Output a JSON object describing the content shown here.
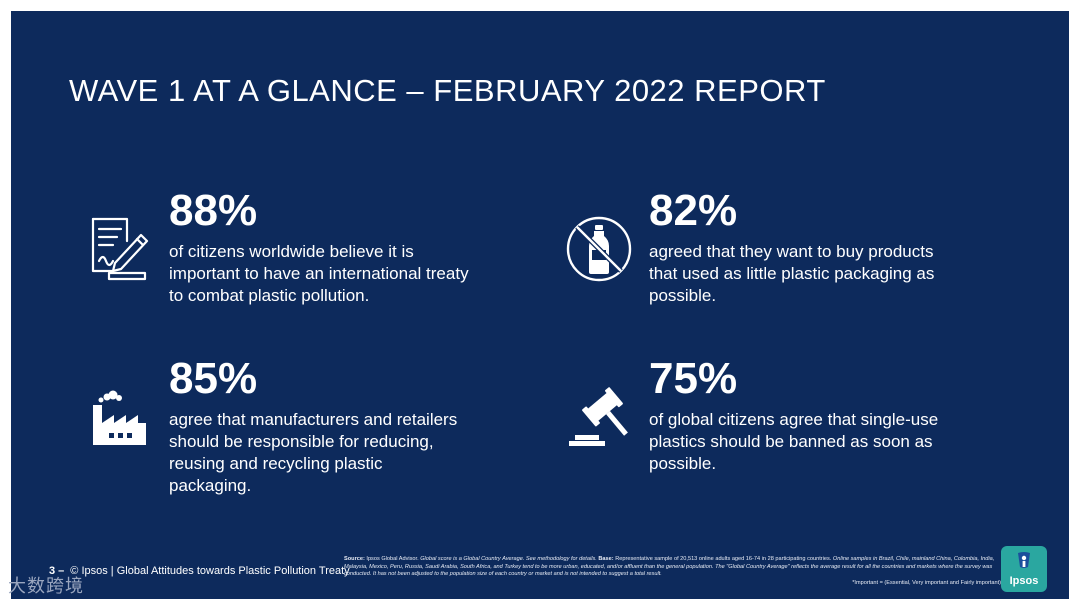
{
  "title": "WAVE 1 AT A GLANCE – FEBRUARY 2022 REPORT",
  "stats": [
    {
      "pct": "88%",
      "desc": "of citizens worldwide believe it is important to have an international treaty to combat plastic pollution.",
      "icon": "treaty-document-icon"
    },
    {
      "pct": "82%",
      "desc": "agreed that they want to buy products that used as little plastic packaging as possible.",
      "icon": "no-plastic-bottle-icon"
    },
    {
      "pct": "85%",
      "desc": "agree that manufacturers and retailers should be responsible for reducing, reusing and recycling plastic packaging.",
      "icon": "factory-icon"
    },
    {
      "pct": "75%",
      "desc": "of global citizens agree that single-use plastics should be banned as soon as possible.",
      "icon": "gavel-icon"
    }
  ],
  "footer": {
    "page": "3 –",
    "text": "© Ipsos | Global Attitudes towards Plastic Pollution Treaty"
  },
  "source": {
    "label1": "Source:",
    "text1": "Ipsos Global Advisor.",
    "italic1": "Global score is a Global Country Average. See methodology for details.",
    "label2": "Base:",
    "text2": "Representative sample of 20,513 online adults aged 16-74 in 28 participating countries.",
    "italic2": "Online samples in Brazil, Chile, mainland China, Colombia, India, Malaysia, Mexico, Peru, Russia, Saudi Arabia, South Africa, and Turkey tend to be more urban, educated, and/or affluent than the general population. The \"Global Country Average\" reflects the average result for all the countries and markets where the survey was conducted. It has not been adjusted to the population size of each country or market and is not intended to suggest a total result.",
    "important": "*Important = (Essential, Very important and Fairly important)"
  },
  "logo": {
    "word": "Ipsos",
    "color": "#2aa7a0"
  },
  "watermark": "大数跨境",
  "colors": {
    "background": "#0d2a5c",
    "text": "#ffffff"
  }
}
